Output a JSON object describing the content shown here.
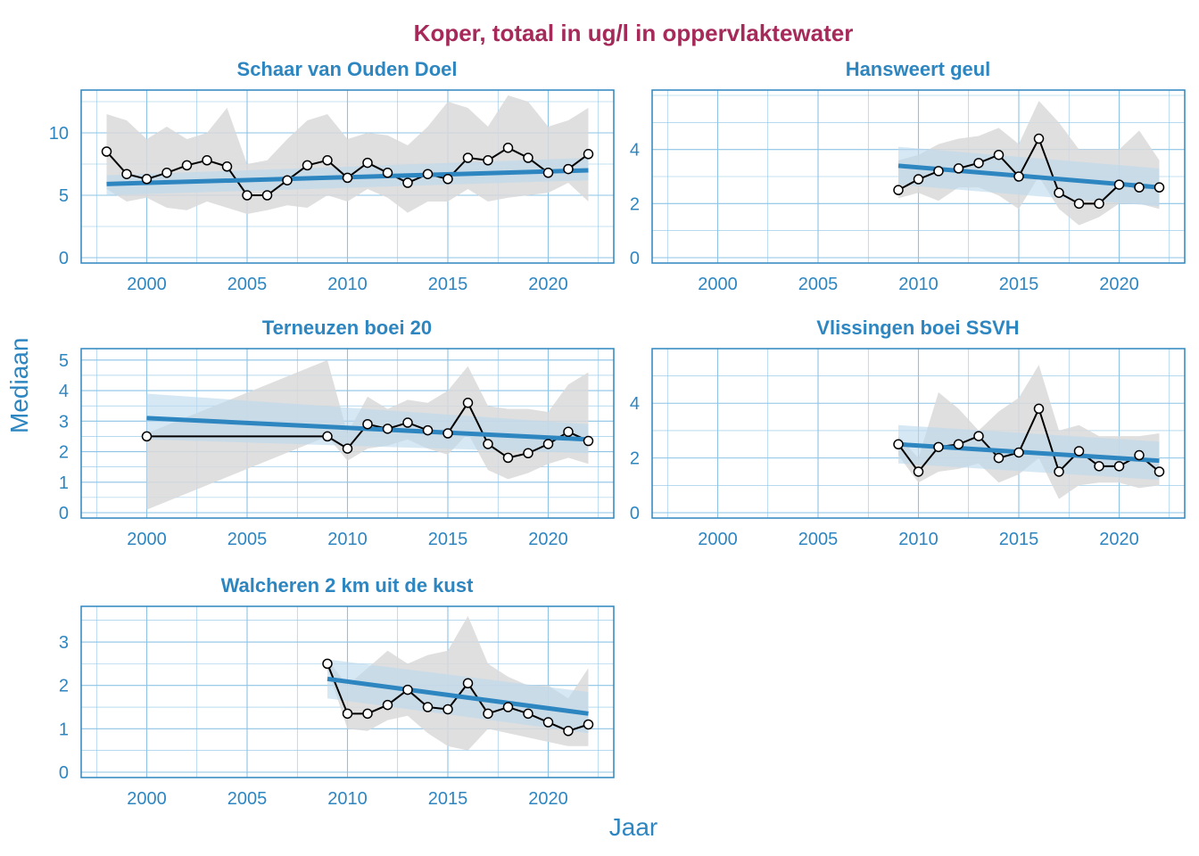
{
  "figure": {
    "title": "Koper, totaal in ug/l in oppervlaktewater",
    "xlabel": "Jaar",
    "ylabel": "Mediaan"
  },
  "colors": {
    "title": "#a52a5a",
    "axis_text": "#2e86c1",
    "panel_border": "#2e86c1",
    "grid": "#8ec3e6",
    "band": "#d9d9d9",
    "trend": "#2e86c1",
    "trend_band": "#bcd9ee",
    "line": "#000000"
  },
  "chart_data": [
    {
      "type": "line",
      "title": "Schaar van Ouden Doel",
      "xlim": [
        1997,
        2023
      ],
      "ylim": [
        0,
        13
      ],
      "x_ticks": [
        2000,
        2005,
        2010,
        2015,
        2020
      ],
      "y_ticks": [
        0,
        5,
        10
      ],
      "x": [
        1998,
        1999,
        2000,
        2001,
        2002,
        2003,
        2004,
        2005,
        2006,
        2007,
        2008,
        2009,
        2010,
        2011,
        2012,
        2013,
        2014,
        2015,
        2016,
        2017,
        2018,
        2019,
        2020,
        2021,
        2022
      ],
      "values": [
        8.5,
        6.7,
        6.3,
        6.8,
        7.4,
        7.8,
        7.3,
        5.0,
        5.0,
        6.2,
        7.4,
        7.8,
        6.4,
        7.6,
        6.8,
        6.0,
        6.7,
        6.3,
        8.0,
        7.8,
        8.8,
        8.0,
        6.8,
        7.1,
        8.3
      ],
      "band_high": [
        11.5,
        11.0,
        9.5,
        10.5,
        9.5,
        10.0,
        12.0,
        7.5,
        7.8,
        9.5,
        11.0,
        11.5,
        9.5,
        10.0,
        9.8,
        9.0,
        10.5,
        12.5,
        12.0,
        10.5,
        13.0,
        12.5,
        10.5,
        11.0,
        12.0
      ],
      "band_low": [
        5.5,
        4.5,
        4.8,
        4.0,
        3.8,
        4.5,
        4.0,
        3.5,
        3.8,
        4.2,
        4.0,
        5.0,
        4.5,
        5.5,
        4.8,
        3.6,
        4.5,
        4.5,
        5.5,
        4.5,
        4.8,
        5.0,
        5.2,
        6.0,
        4.5
      ],
      "trend": {
        "x": [
          1998,
          2022
        ],
        "y": [
          5.9,
          7.0
        ]
      },
      "trend_band_high": [
        6.6,
        8.0
      ],
      "trend_band_low": [
        5.0,
        6.2
      ]
    },
    {
      "type": "line",
      "title": "Hansweert geul",
      "xlim": [
        1997,
        2023
      ],
      "ylim": [
        0,
        6
      ],
      "x_ticks": [
        2000,
        2005,
        2010,
        2015,
        2020
      ],
      "y_ticks": [
        0,
        2,
        4
      ],
      "x": [
        2009,
        2010,
        2011,
        2012,
        2013,
        2014,
        2015,
        2016,
        2017,
        2018,
        2019,
        2020,
        2021,
        2022
      ],
      "values": [
        2.5,
        2.9,
        3.2,
        3.3,
        3.5,
        3.8,
        3.0,
        4.4,
        2.4,
        2.0,
        2.0,
        2.7,
        2.6,
        2.6
      ],
      "band_high": [
        3.6,
        3.8,
        4.2,
        4.4,
        4.5,
        4.8,
        4.2,
        5.8,
        5.0,
        4.0,
        4.0,
        4.0,
        4.7,
        3.6
      ],
      "band_low": [
        2.2,
        2.4,
        2.1,
        2.6,
        2.6,
        2.3,
        1.8,
        3.0,
        1.8,
        1.2,
        1.5,
        2.0,
        2.0,
        1.8
      ],
      "trend": {
        "x": [
          2009,
          2022
        ],
        "y": [
          3.4,
          2.6
        ]
      },
      "trend_band_high": [
        4.1,
        3.3
      ],
      "trend_band_low": [
        2.7,
        1.9
      ]
    },
    {
      "type": "line",
      "title": "Terneuzen boei 20",
      "xlim": [
        1997,
        2023
      ],
      "ylim": [
        0,
        5.2
      ],
      "x_ticks": [
        2000,
        2005,
        2010,
        2015,
        2020
      ],
      "y_ticks": [
        0,
        1,
        2,
        3,
        4,
        5
      ],
      "x": [
        2000,
        2009,
        2010,
        2011,
        2012,
        2013,
        2014,
        2015,
        2016,
        2017,
        2018,
        2019,
        2020,
        2021,
        2022
      ],
      "values": [
        2.5,
        2.5,
        2.1,
        2.9,
        2.75,
        2.95,
        2.7,
        2.6,
        3.6,
        2.25,
        1.8,
        1.95,
        2.25,
        2.65,
        2.35
      ],
      "band_high": [
        2.6,
        5.0,
        2.6,
        3.8,
        3.4,
        3.7,
        3.6,
        4.0,
        4.8,
        3.5,
        3.4,
        3.4,
        3.3,
        4.2,
        4.6
      ],
      "band_low": [
        0.1,
        2.5,
        1.7,
        2.1,
        2.2,
        2.4,
        2.1,
        1.9,
        2.6,
        1.4,
        1.1,
        1.3,
        1.6,
        1.8,
        1.6
      ],
      "trend": {
        "x": [
          2000,
          2022
        ],
        "y": [
          3.1,
          2.4
        ]
      },
      "trend_band_high": [
        3.9,
        2.9
      ],
      "trend_band_low": [
        2.4,
        1.95
      ]
    },
    {
      "type": "line",
      "title": "Vlissingen boei SSVH",
      "xlim": [
        1997,
        2023
      ],
      "ylim": [
        0,
        5.8
      ],
      "x_ticks": [
        2000,
        2005,
        2010,
        2015,
        2020
      ],
      "y_ticks": [
        0,
        2,
        4
      ],
      "x": [
        2009,
        2010,
        2011,
        2012,
        2013,
        2014,
        2015,
        2016,
        2017,
        2018,
        2019,
        2020,
        2021,
        2022
      ],
      "values": [
        2.5,
        1.5,
        2.4,
        2.5,
        2.8,
        2.0,
        2.2,
        3.8,
        1.5,
        2.25,
        1.7,
        1.7,
        2.1,
        1.5
      ],
      "band_high": [
        2.8,
        2.0,
        4.4,
        3.8,
        3.0,
        3.7,
        4.2,
        5.4,
        3.0,
        3.2,
        2.8,
        2.8,
        2.8,
        2.9
      ],
      "band_low": [
        2.1,
        1.1,
        1.5,
        1.6,
        1.8,
        1.1,
        1.4,
        2.0,
        0.5,
        1.0,
        1.1,
        1.1,
        0.9,
        1.0
      ],
      "trend": {
        "x": [
          2009,
          2022
        ],
        "y": [
          2.5,
          1.9
        ]
      },
      "trend_band_high": [
        3.2,
        2.6
      ],
      "trend_band_low": [
        1.8,
        1.2
      ]
    },
    {
      "type": "line",
      "title": "Walcheren 2 km uit de kust",
      "xlim": [
        1997,
        2023
      ],
      "ylim": [
        0,
        3.7
      ],
      "x_ticks": [
        2000,
        2005,
        2010,
        2015,
        2020
      ],
      "y_ticks": [
        0,
        1,
        2,
        3
      ],
      "x": [
        2009,
        2010,
        2011,
        2012,
        2013,
        2014,
        2015,
        2016,
        2017,
        2018,
        2019,
        2020,
        2021,
        2022
      ],
      "values": [
        2.5,
        1.35,
        1.35,
        1.55,
        1.9,
        1.5,
        1.45,
        2.05,
        1.35,
        1.5,
        1.35,
        1.15,
        0.95,
        1.1
      ],
      "band_high": [
        2.6,
        2.0,
        2.4,
        2.8,
        2.5,
        2.7,
        2.8,
        3.6,
        2.5,
        2.2,
        2.0,
        2.0,
        1.7,
        2.4
      ],
      "band_low": [
        2.4,
        1.0,
        0.95,
        1.2,
        1.3,
        0.9,
        0.6,
        0.5,
        1.0,
        0.9,
        0.8,
        0.7,
        0.6,
        0.6
      ],
      "trend": {
        "x": [
          2009,
          2022
        ],
        "y": [
          2.15,
          1.35
        ]
      },
      "trend_band_high": [
        2.6,
        1.85
      ],
      "trend_band_low": [
        1.7,
        0.9
      ]
    }
  ]
}
